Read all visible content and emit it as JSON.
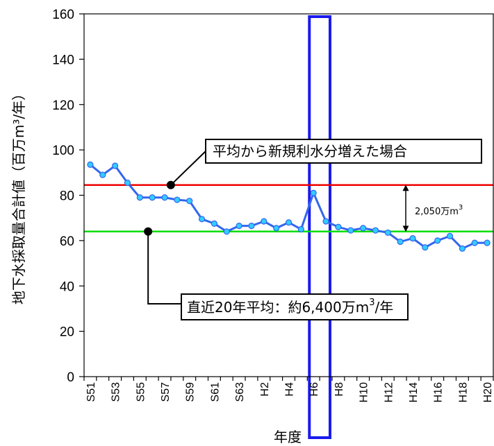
{
  "chart_data": {
    "type": "line",
    "xlabel": "年度",
    "ylabel": "地下水採取量合計値（百万m³/年）",
    "ylim": [
      0,
      160
    ],
    "yticks": [
      0,
      20,
      40,
      60,
      80,
      100,
      120,
      140,
      160
    ],
    "categories": [
      "S51",
      "S52",
      "S53",
      "S54",
      "S55",
      "S56",
      "S57",
      "S58",
      "S59",
      "S60",
      "S61",
      "S62",
      "S63",
      "H1",
      "H2",
      "H3",
      "H4",
      "H5",
      "H6",
      "H7",
      "H8",
      "H9",
      "H10",
      "H11",
      "H12",
      "H13",
      "H14",
      "H15",
      "H16",
      "H17",
      "H18",
      "H19",
      "H20"
    ],
    "x_tick_labels": [
      "S51",
      "S53",
      "S55",
      "S57",
      "S59",
      "S61",
      "S63",
      "H2",
      "H4",
      "H6",
      "H8",
      "H10",
      "H12",
      "H14",
      "H16",
      "H18",
      "H20"
    ],
    "series": [
      {
        "values": [
          93.5,
          89,
          93,
          85.5,
          79,
          79,
          79,
          78,
          77.5,
          69.5,
          67.5,
          64,
          66.5,
          66.5,
          68.5,
          65.5,
          68,
          65,
          81,
          68.5,
          66,
          64.5,
          65.5,
          64.5,
          63.5,
          59.5,
          61,
          57,
          60,
          62,
          56.5,
          59,
          59
        ],
        "color": "#3366ee",
        "marker_color": "#33ccff"
      }
    ],
    "reference_lines": [
      {
        "value": 84.5,
        "color": "#ee0000"
      },
      {
        "value": 64,
        "color": "#00dd00"
      }
    ],
    "highlight_category": "H6",
    "highlight_color": "#1a1aee",
    "annotations": {
      "upper_label": "平均から新規利水分増えた場合",
      "lower_label_prefix": "直近20年平均：約6,400万m",
      "lower_label_sup": "3",
      "lower_label_suffix": "/年",
      "diff_label": "2,050万m",
      "diff_label_sup": "3"
    }
  }
}
